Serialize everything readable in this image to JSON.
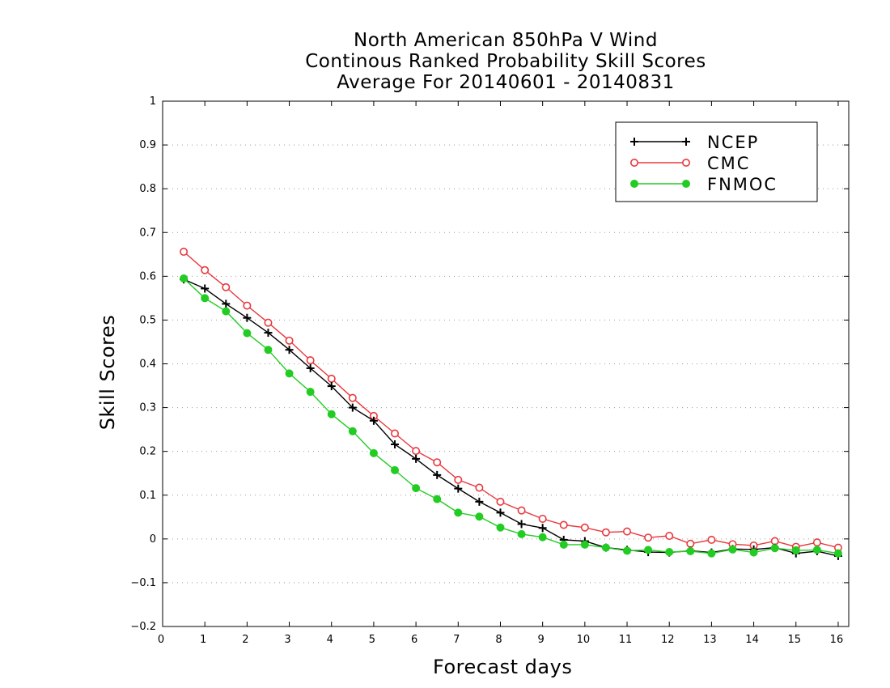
{
  "chart_data": {
    "type": "line",
    "title": [
      "North American 850hPa V Wind",
      "Continous Ranked Probability Skill Scores",
      "Average For 20140601 - 20140831"
    ],
    "xlabel": "Forecast days",
    "ylabel": "Skill Scores",
    "xlim": [
      0,
      16.25
    ],
    "ylim": [
      -0.2,
      1
    ],
    "xticks": [
      0,
      1,
      2,
      3,
      4,
      5,
      6,
      7,
      8,
      9,
      10,
      11,
      12,
      13,
      14,
      15,
      16
    ],
    "yticks": [
      -0.2,
      -0.1,
      0,
      0.1,
      0.2,
      0.3,
      0.4,
      0.5,
      0.6,
      0.7,
      0.8,
      0.9,
      1
    ],
    "ytick_labels": [
      "−0.2",
      "−0.1",
      "0",
      "0.1",
      "0.2",
      "0.3",
      "0.4",
      "0.5",
      "0.6",
      "0.7",
      "0.8",
      "0.9",
      "1"
    ],
    "grid": "horizontal dotted",
    "legend_position": "top-right",
    "x": [
      0.5,
      1,
      1.5,
      2,
      2.5,
      3,
      3.5,
      4,
      4.5,
      5,
      5.5,
      6,
      6.5,
      7,
      7.5,
      8,
      8.5,
      9,
      9.5,
      10,
      10.5,
      11,
      11.5,
      12,
      12.5,
      13,
      13.5,
      14,
      14.5,
      15,
      15.5,
      16
    ],
    "series": [
      {
        "name": "NCEP",
        "color": "#000000",
        "marker": "plus",
        "values": [
          0.593,
          0.572,
          0.537,
          0.505,
          0.471,
          0.432,
          0.39,
          0.349,
          0.3,
          0.27,
          0.216,
          0.183,
          0.146,
          0.115,
          0.085,
          0.06,
          0.034,
          0.025,
          -0.002,
          -0.005,
          -0.02,
          -0.025,
          -0.03,
          -0.031,
          -0.027,
          -0.031,
          -0.023,
          -0.024,
          -0.02,
          -0.033,
          -0.028,
          -0.039
        ]
      },
      {
        "name": "CMC",
        "color": "#e8383d",
        "marker": "open-circle",
        "values": [
          0.656,
          0.614,
          0.575,
          0.533,
          0.494,
          0.453,
          0.408,
          0.366,
          0.322,
          0.281,
          0.241,
          0.201,
          0.175,
          0.135,
          0.117,
          0.085,
          0.065,
          0.046,
          0.032,
          0.026,
          0.015,
          0.017,
          0.003,
          0.007,
          -0.011,
          -0.002,
          -0.012,
          -0.015,
          -0.005,
          -0.018,
          -0.008,
          -0.02
        ]
      },
      {
        "name": "FNMOC",
        "color": "#22cc22",
        "marker": "filled-circle",
        "values": [
          0.595,
          0.55,
          0.52,
          0.47,
          0.432,
          0.378,
          0.336,
          0.285,
          0.246,
          0.196,
          0.157,
          0.116,
          0.091,
          0.06,
          0.051,
          0.026,
          0.011,
          0.004,
          -0.013,
          -0.013,
          -0.02,
          -0.027,
          -0.025,
          -0.03,
          -0.028,
          -0.033,
          -0.024,
          -0.031,
          -0.021,
          -0.026,
          -0.025,
          -0.033
        ]
      }
    ]
  }
}
